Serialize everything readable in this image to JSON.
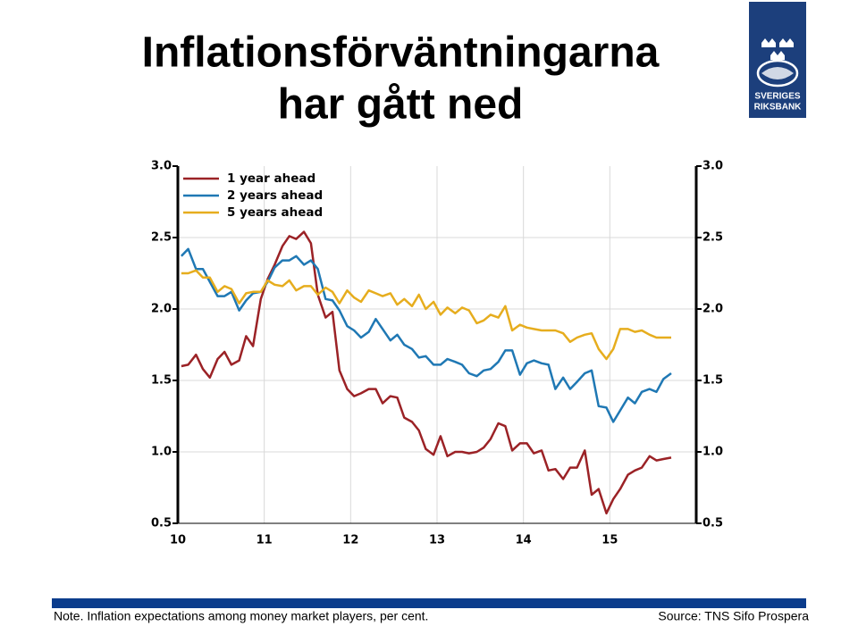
{
  "chart_data": {
    "type": "line",
    "title": [
      "Inflationsförväntningarna",
      "har gått ned"
    ],
    "logo": [
      "SVERIGES",
      "RIKSBANK"
    ],
    "note": "Note. Inflation expectations among money market players, per cent.",
    "source": "Source: TNS Sifo Prospera",
    "x": [
      10.04,
      10.12,
      10.21,
      10.29,
      10.37,
      10.46,
      10.54,
      10.62,
      10.71,
      10.79,
      10.87,
      10.96,
      11.04,
      11.12,
      11.21,
      11.29,
      11.37,
      11.46,
      11.54,
      11.62,
      11.71,
      11.79,
      11.87,
      11.96,
      12.04,
      12.12,
      12.21,
      12.29,
      12.37,
      12.46,
      12.54,
      12.62,
      12.71,
      12.79,
      12.87,
      12.96,
      13.04,
      13.12,
      13.21,
      13.29,
      13.37,
      13.46,
      13.54,
      13.62,
      13.71,
      13.79,
      13.87,
      13.96,
      14.04,
      14.12,
      14.21,
      14.29,
      14.37,
      14.46,
      14.54,
      14.62,
      14.71,
      14.79,
      14.87,
      14.96,
      15.04,
      15.12,
      15.21,
      15.29,
      15.37,
      15.46,
      15.54,
      15.62,
      15.71
    ],
    "series": [
      {
        "name": "1 year ahead",
        "color": "#9b2226",
        "values": [
          1.6,
          1.61,
          1.68,
          1.58,
          1.52,
          1.65,
          1.7,
          1.61,
          1.64,
          1.81,
          1.74,
          2.07,
          2.21,
          2.31,
          2.44,
          2.51,
          2.49,
          2.54,
          2.46,
          2.1,
          1.94,
          1.98,
          1.57,
          1.44,
          1.39,
          1.41,
          1.44,
          1.44,
          1.34,
          1.39,
          1.38,
          1.24,
          1.21,
          1.15,
          1.02,
          0.98,
          1.11,
          0.97,
          1.0,
          1.0,
          0.99,
          1.0,
          1.03,
          1.09,
          1.2,
          1.18,
          1.01,
          1.06,
          1.06,
          0.99,
          1.01,
          0.87,
          0.88,
          0.81,
          0.89,
          0.89,
          1.01,
          0.7,
          0.74,
          0.57,
          0.67,
          0.74,
          0.84,
          0.87,
          0.89,
          0.97,
          0.94,
          0.95,
          0.96
        ]
      },
      {
        "name": "2 years ahead",
        "color": "#1f78b4",
        "values": [
          2.37,
          2.42,
          2.28,
          2.28,
          2.19,
          2.09,
          2.09,
          2.12,
          1.99,
          2.06,
          2.11,
          2.12,
          2.19,
          2.29,
          2.34,
          2.34,
          2.37,
          2.31,
          2.34,
          2.28,
          2.07,
          2.06,
          1.99,
          1.88,
          1.85,
          1.8,
          1.84,
          1.93,
          1.86,
          1.78,
          1.82,
          1.75,
          1.72,
          1.66,
          1.67,
          1.61,
          1.61,
          1.65,
          1.63,
          1.61,
          1.55,
          1.53,
          1.57,
          1.58,
          1.63,
          1.71,
          1.71,
          1.54,
          1.62,
          1.64,
          1.62,
          1.61,
          1.44,
          1.52,
          1.44,
          1.49,
          1.55,
          1.57,
          1.32,
          1.31,
          1.21,
          1.29,
          1.38,
          1.34,
          1.42,
          1.44,
          1.42,
          1.51,
          1.55
        ]
      },
      {
        "name": "5 years ahead",
        "color": "#e6ad1e",
        "values": [
          2.25,
          2.25,
          2.27,
          2.22,
          2.22,
          2.12,
          2.16,
          2.14,
          2.04,
          2.11,
          2.12,
          2.12,
          2.2,
          2.17,
          2.16,
          2.2,
          2.13,
          2.16,
          2.16,
          2.1,
          2.15,
          2.12,
          2.04,
          2.13,
          2.08,
          2.05,
          2.13,
          2.11,
          2.09,
          2.11,
          2.03,
          2.07,
          2.02,
          2.1,
          2.0,
          2.05,
          1.96,
          2.01,
          1.97,
          2.01,
          1.99,
          1.9,
          1.92,
          1.96,
          1.94,
          2.02,
          1.85,
          1.89,
          1.87,
          1.86,
          1.85,
          1.85,
          1.85,
          1.83,
          1.77,
          1.8,
          1.82,
          1.83,
          1.72,
          1.65,
          1.72,
          1.86,
          1.86,
          1.84,
          1.85,
          1.82,
          1.8,
          1.8,
          1.8
        ]
      }
    ],
    "xlim": [
      10,
      16
    ],
    "xticks": [
      10,
      11,
      12,
      13,
      14,
      15
    ],
    "ylim": [
      0.5,
      3
    ],
    "yticks": [
      {
        "value": 0.5,
        "label": "0.5"
      },
      {
        "value": 1,
        "label": "1.0"
      },
      {
        "value": 1.5,
        "label": "1.5"
      },
      {
        "value": 2,
        "label": "2.0"
      },
      {
        "value": 2.5,
        "label": "2.5"
      },
      {
        "value": 3,
        "label": "3.0"
      }
    ],
    "grid": true,
    "legend": "upper left"
  }
}
